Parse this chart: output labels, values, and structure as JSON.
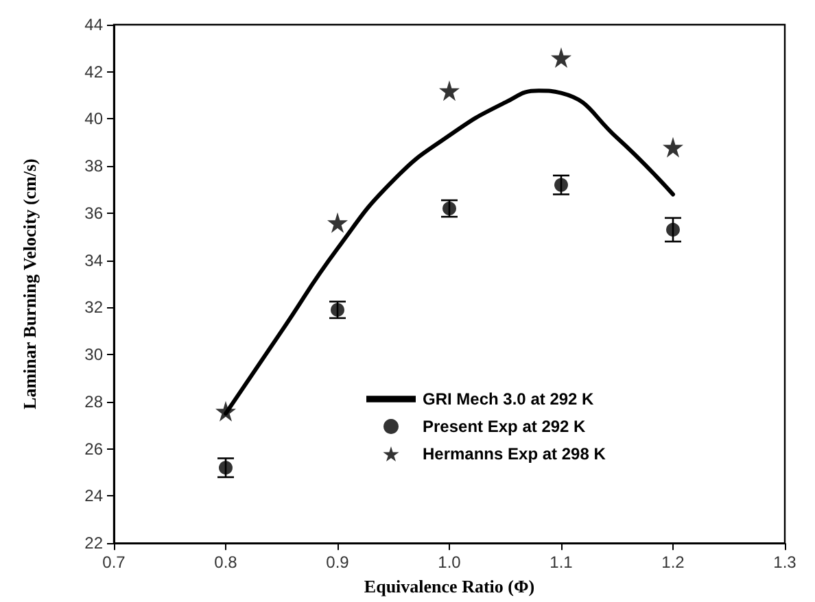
{
  "chart_data": {
    "type": "scatter",
    "xlabel": "Equivalence Ratio (Φ)",
    "ylabel": "Laminar Burning Velocity (cm/s)",
    "xlim": [
      0.7,
      1.3
    ],
    "ylim": [
      22,
      44
    ],
    "xticks": [
      {
        "value": 0.7,
        "label": "0.7"
      },
      {
        "value": 0.8,
        "label": "0.8"
      },
      {
        "value": 0.9,
        "label": "0.9"
      },
      {
        "value": 1.0,
        "label": "1.0"
      },
      {
        "value": 1.1,
        "label": "1.1"
      },
      {
        "value": 1.2,
        "label": "1.2"
      },
      {
        "value": 1.3,
        "label": "1.3"
      }
    ],
    "yticks": [
      22,
      24,
      26,
      28,
      30,
      32,
      34,
      36,
      38,
      40,
      42,
      44
    ],
    "grid": false,
    "legend": "bottom",
    "series": [
      {
        "name": "GRI Mech 3.0 at 292 K",
        "type": "line",
        "color": "#000000",
        "marker": "none",
        "line_style": "solid",
        "x": [
          0.8,
          0.85,
          0.9,
          0.95,
          1.0,
          1.05,
          1.08,
          1.1,
          1.15,
          1.2
        ],
        "values": [
          27.5,
          31.0,
          34.5,
          37.4,
          39.3,
          40.7,
          41.2,
          41.1,
          39.2,
          36.8
        ]
      },
      {
        "name": "Present Exp at 292 K",
        "color": "#000000",
        "marker": "circle",
        "x": [
          0.8,
          0.9,
          1.0,
          1.1,
          1.2
        ],
        "values": [
          25.2,
          31.9,
          36.2,
          37.2,
          35.3
        ],
        "errors": [
          0.4,
          0.35,
          0.35,
          0.4,
          0.5
        ]
      },
      {
        "name": "Hermanns Exp at 298 K",
        "color": "#000000",
        "marker": "star",
        "x": [
          0.8,
          0.9,
          1.0,
          1.1,
          1.2
        ],
        "values": [
          27.6,
          35.6,
          41.2,
          42.6,
          38.8
        ]
      }
    ]
  }
}
